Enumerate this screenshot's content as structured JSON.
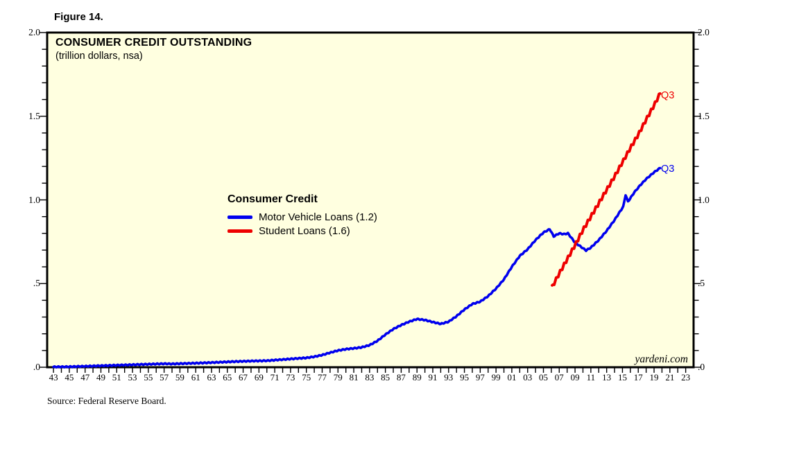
{
  "figure_label": "Figure 14.",
  "chart": {
    "title": "CONSUMER CREDIT OUTSTANDING",
    "subtitle": "(trillion dollars, nsa)"
  },
  "legend": {
    "title": "Consumer Credit",
    "items": [
      {
        "label": "Motor Vehicle Loans (1.2)",
        "color": "#0000EE"
      },
      {
        "label": "Student Loans (1.6)",
        "color": "#EE0000"
      }
    ]
  },
  "series_end_labels": {
    "student": "Q3",
    "motor": "Q3"
  },
  "watermark": "yardeni.com",
  "source": "Source: Federal Reserve Board.",
  "colors": {
    "plot_background": "#FFFFE0",
    "border": "#000000",
    "motor_vehicle_blue": "#0000EE",
    "student_red": "#EE0000"
  },
  "axes": {
    "y_left_labels": [
      "2.0",
      "1.5",
      "1.0",
      ".5",
      ".0"
    ],
    "y_right_labels": [
      "2.0",
      "1.5",
      "1.0",
      ".5",
      ".0"
    ],
    "y_major_values": [
      2.0,
      1.5,
      1.0,
      0.5,
      0.0
    ],
    "y_minor_step": 0.1,
    "x_tick_labels": [
      "43",
      "45",
      "47",
      "49",
      "51",
      "53",
      "55",
      "57",
      "59",
      "61",
      "63",
      "65",
      "67",
      "69",
      "71",
      "73",
      "75",
      "77",
      "79",
      "81",
      "83",
      "85",
      "87",
      "89",
      "91",
      "93",
      "95",
      "97",
      "99",
      "01",
      "03",
      "05",
      "07",
      "09",
      "11",
      "13",
      "15",
      "17",
      "19",
      "21",
      "23"
    ],
    "x_first_label_year": 1943,
    "x_label_step": 2
  },
  "chart_data": {
    "type": "line",
    "title": "CONSUMER CREDIT OUTSTANDING",
    "subtitle": "(trillion dollars, nsa)",
    "xlabel": "year (1943-2023, ticks yearly, labels every 2 years)",
    "ylabel": "trillion dollars, nsa",
    "ylim": [
      0,
      2
    ],
    "xlim": [
      1942.2,
      2024
    ],
    "grid": false,
    "legend_position": "center-left inside plot",
    "series": [
      {
        "name": "Motor Vehicle Loans",
        "color": "#0000EE",
        "end_label": "Q3",
        "latest_value": 1.2,
        "points": [
          [
            1943,
            0.002
          ],
          [
            1945,
            0.003
          ],
          [
            1947,
            0.006
          ],
          [
            1949,
            0.009
          ],
          [
            1951,
            0.012
          ],
          [
            1953,
            0.015
          ],
          [
            1955,
            0.018
          ],
          [
            1957,
            0.021
          ],
          [
            1958,
            0.02
          ],
          [
            1960,
            0.023
          ],
          [
            1962,
            0.026
          ],
          [
            1964,
            0.03
          ],
          [
            1966,
            0.034
          ],
          [
            1968,
            0.037
          ],
          [
            1970,
            0.039
          ],
          [
            1972,
            0.046
          ],
          [
            1974,
            0.053
          ],
          [
            1975,
            0.056
          ],
          [
            1976,
            0.063
          ],
          [
            1977,
            0.073
          ],
          [
            1978,
            0.087
          ],
          [
            1979,
            0.1
          ],
          [
            1980,
            0.108
          ],
          [
            1981,
            0.113
          ],
          [
            1982,
            0.119
          ],
          [
            1983,
            0.132
          ],
          [
            1984,
            0.158
          ],
          [
            1985,
            0.195
          ],
          [
            1986,
            0.228
          ],
          [
            1987,
            0.252
          ],
          [
            1988,
            0.272
          ],
          [
            1989,
            0.288
          ],
          [
            1990,
            0.282
          ],
          [
            1991,
            0.27
          ],
          [
            1992,
            0.259
          ],
          [
            1993,
            0.272
          ],
          [
            1994,
            0.305
          ],
          [
            1995,
            0.345
          ],
          [
            1996,
            0.378
          ],
          [
            1997,
            0.392
          ],
          [
            1998,
            0.425
          ],
          [
            1999,
            0.47
          ],
          [
            2000,
            0.525
          ],
          [
            2001,
            0.6
          ],
          [
            2002,
            0.665
          ],
          [
            2003,
            0.705
          ],
          [
            2004,
            0.76
          ],
          [
            2005,
            0.805
          ],
          [
            2005.8,
            0.825
          ],
          [
            2006.3,
            0.782
          ],
          [
            2007,
            0.8
          ],
          [
            2007.6,
            0.795
          ],
          [
            2008.1,
            0.8
          ],
          [
            2009,
            0.745
          ],
          [
            2010.4,
            0.698
          ],
          [
            2011,
            0.715
          ],
          [
            2012,
            0.76
          ],
          [
            2013,
            0.815
          ],
          [
            2014,
            0.88
          ],
          [
            2015.1,
            0.96
          ],
          [
            2015.4,
            1.03
          ],
          [
            2015.7,
            0.99
          ],
          [
            2016.5,
            1.045
          ],
          [
            2017.2,
            1.085
          ],
          [
            2018,
            1.125
          ],
          [
            2019,
            1.165
          ],
          [
            2019.75,
            1.19
          ]
        ]
      },
      {
        "name": "Student Loans",
        "color": "#EE0000",
        "end_label": "Q3",
        "latest_value": 1.6,
        "points": [
          [
            2006.1,
            0.48
          ],
          [
            2007,
            0.56
          ],
          [
            2008,
            0.645
          ],
          [
            2009,
            0.73
          ],
          [
            2010,
            0.82
          ],
          [
            2011,
            0.9
          ],
          [
            2012,
            0.98
          ],
          [
            2013,
            1.06
          ],
          [
            2014,
            1.14
          ],
          [
            2015,
            1.225
          ],
          [
            2016,
            1.31
          ],
          [
            2017,
            1.39
          ],
          [
            2018,
            1.48
          ],
          [
            2019,
            1.565
          ],
          [
            2019.75,
            1.635
          ]
        ]
      }
    ]
  }
}
